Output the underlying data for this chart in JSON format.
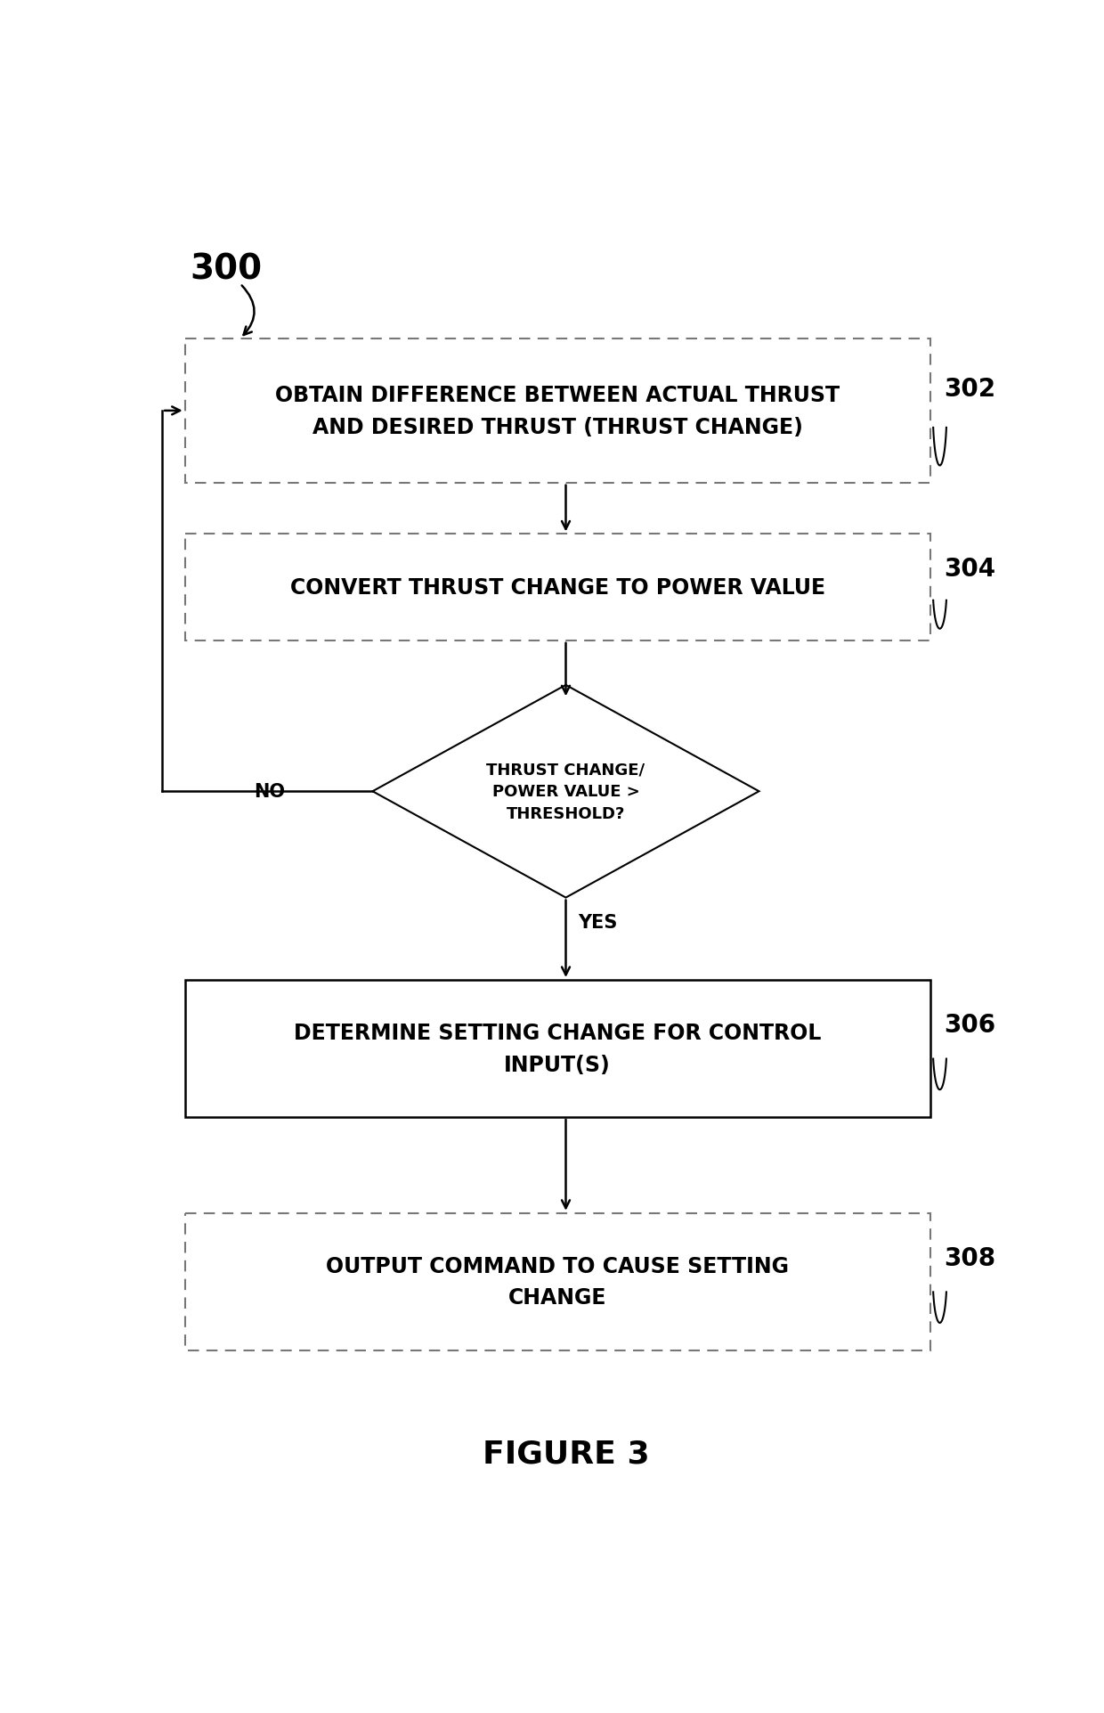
{
  "title": "FIGURE 3",
  "label_300": "300",
  "label_302": "302",
  "label_304": "304",
  "label_306": "306",
  "label_308": "308",
  "box302_text": "OBTAIN DIFFERENCE BETWEEN ACTUAL THRUST\nAND DESIRED THRUST (THRUST CHANGE)",
  "box304_text": "CONVERT THRUST CHANGE TO POWER VALUE",
  "diamond_text": "THRUST CHANGE/\nPOWER VALUE >\nTHRESHOLD?",
  "box306_text": "DETERMINE SETTING CHANGE FOR CONTROL\nINPUT(S)",
  "box308_text": "OUTPUT COMMAND TO CAUSE SETTING\nCHANGE",
  "yes_label": "YES",
  "no_label": "NO",
  "bg_color": "#ffffff",
  "text_color": "#000000",
  "arrow_color": "#000000",
  "dashed_color": "#777777",
  "solid_color": "#000000",
  "figure_width": 12.4,
  "figure_height": 19.24,
  "dpi": 100
}
